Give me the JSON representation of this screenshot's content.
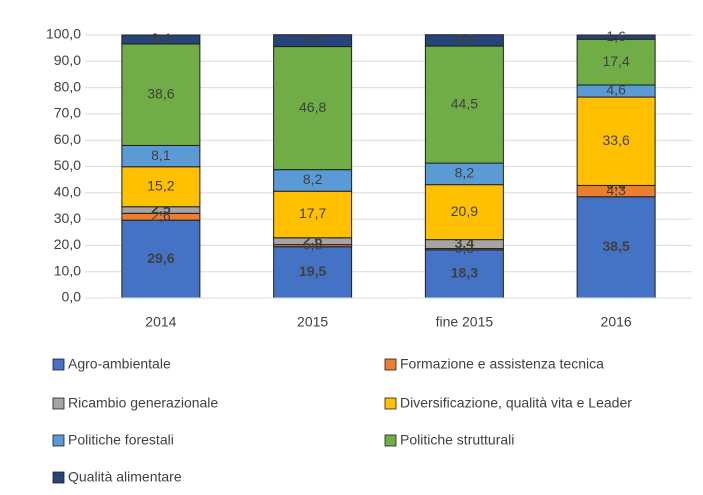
{
  "chart_data": {
    "type": "stacked_bar",
    "categories": [
      "2014",
      "2015",
      "fine 2015",
      "2016"
    ],
    "series": [
      {
        "name": "Agro-ambientale",
        "color": "#4472c4",
        "values": [
          29.6,
          19.5,
          18.3,
          38.5
        ],
        "value_labels": [
          "29,6",
          "19,5",
          "18,3",
          "38,5"
        ]
      },
      {
        "name": "Formazione e assistenza tecnica",
        "color": "#ed7d31",
        "values": [
          2.6,
          0.8,
          0.5,
          4.3
        ],
        "value_labels": [
          "2,6",
          "0,8",
          "0,5",
          "4,3"
        ]
      },
      {
        "name": "Ricambio generazionale",
        "color": "#a5a5a5",
        "values": [
          2.5,
          2.6,
          3.4,
          0.0
        ],
        "value_labels": [
          "2,5",
          "2,6",
          "3,4",
          "0,0"
        ]
      },
      {
        "name": "Diversificazione, qualità vita e Leader",
        "color": "#ffc000",
        "values": [
          15.2,
          17.7,
          20.9,
          33.6
        ],
        "value_labels": [
          "15,2",
          "17,7",
          "20,9",
          "33,6"
        ]
      },
      {
        "name": "Politiche forestali",
        "color": "#5b9bd5",
        "values": [
          8.1,
          8.2,
          8.2,
          4.6
        ],
        "value_labels": [
          "8,1",
          "8,2",
          "8,2",
          "4,6"
        ]
      },
      {
        "name": "Politiche strutturali",
        "color": "#70ad47",
        "values": [
          38.6,
          46.8,
          44.5,
          17.4
        ],
        "value_labels": [
          "38,6",
          "46,8",
          "44,5",
          "17,4"
        ]
      },
      {
        "name": "Qualità alimentare",
        "color": "#264478",
        "values": [
          3.4,
          4.5,
          4.3,
          1.6
        ],
        "value_labels": [
          "3,4",
          "4,5",
          "4,3",
          "1,6"
        ]
      }
    ],
    "ylim": [
      0,
      100
    ],
    "yticks": [
      {
        "value": 0,
        "label": "0,0"
      },
      {
        "value": 10,
        "label": "10,0"
      },
      {
        "value": 20,
        "label": "20,0"
      },
      {
        "value": 30,
        "label": "30,0"
      },
      {
        "value": 40,
        "label": "40,0"
      },
      {
        "value": 50,
        "label": "50,0"
      },
      {
        "value": 60,
        "label": "60,0"
      },
      {
        "value": 70,
        "label": "70,0"
      },
      {
        "value": 80,
        "label": "80,0"
      },
      {
        "value": 90,
        "label": "90,0"
      },
      {
        "value": 100,
        "label": "100,0"
      }
    ],
    "grid": true
  }
}
